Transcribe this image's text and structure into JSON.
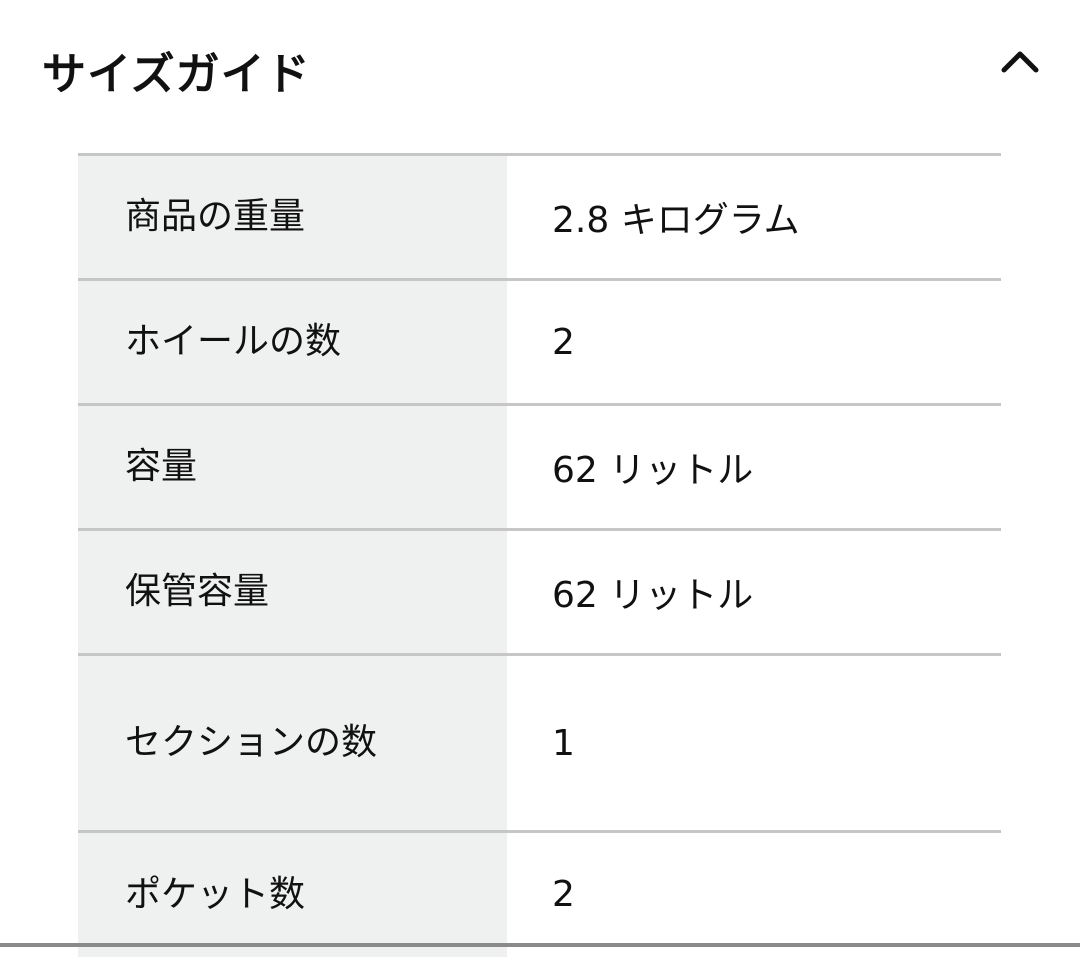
{
  "header": {
    "title": "サイズガイド",
    "toggle_icon": "chevron-up-icon"
  },
  "specs": [
    {
      "label": "商品の重量",
      "value": "2.8 キログラム"
    },
    {
      "label": "ホイールの数",
      "value": "2"
    },
    {
      "label": "容量",
      "value": "62 リットル"
    },
    {
      "label": "保管容量",
      "value": "62 リットル"
    },
    {
      "label": "セクションの数",
      "value": "1"
    },
    {
      "label": "ポケット数",
      "value": "2"
    }
  ]
}
